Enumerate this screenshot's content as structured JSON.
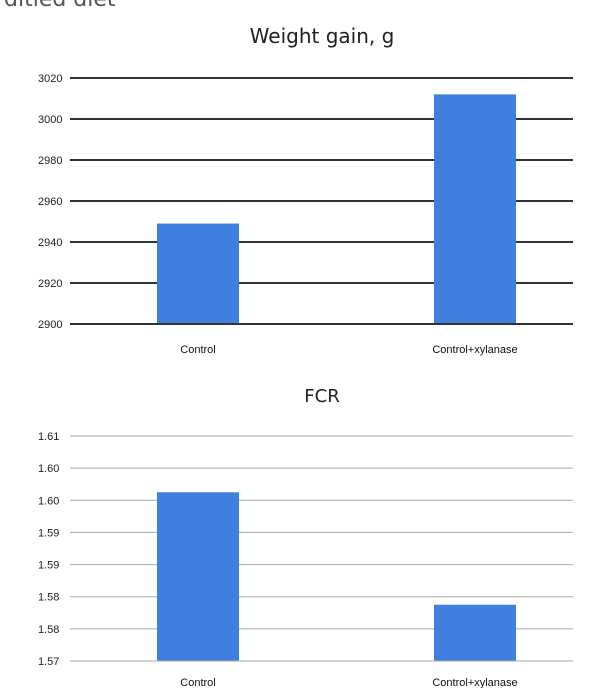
{
  "partial_heading": "ditied diet",
  "chart_data": [
    {
      "type": "bar",
      "title": "Weight gain, g",
      "categories": [
        "Control",
        "Control+xylanase"
      ],
      "values": [
        2949,
        3012
      ],
      "ylim": [
        2900,
        3020
      ],
      "yticks": [
        "2900",
        "2920",
        "2940",
        "2960",
        "2980",
        "3000",
        "3020"
      ],
      "grid": true,
      "bar_color": "#3f7fe0",
      "category_label_colors": [
        "#111111",
        "#3f7fe0"
      ]
    },
    {
      "type": "bar",
      "title": "FCR",
      "categories": [
        "Control",
        "Control+xylanase"
      ],
      "values": [
        1.6,
        1.58
      ],
      "ylim": [
        1.57,
        1.61
      ],
      "yticks": [
        "1.57",
        "1.58",
        "1.58",
        "1.59",
        "1.59",
        "1.60",
        "1.60",
        "1.61"
      ],
      "grid": true,
      "bar_color": "#3f7fe0",
      "category_label_colors": [
        "#111111",
        "#111111"
      ]
    }
  ]
}
